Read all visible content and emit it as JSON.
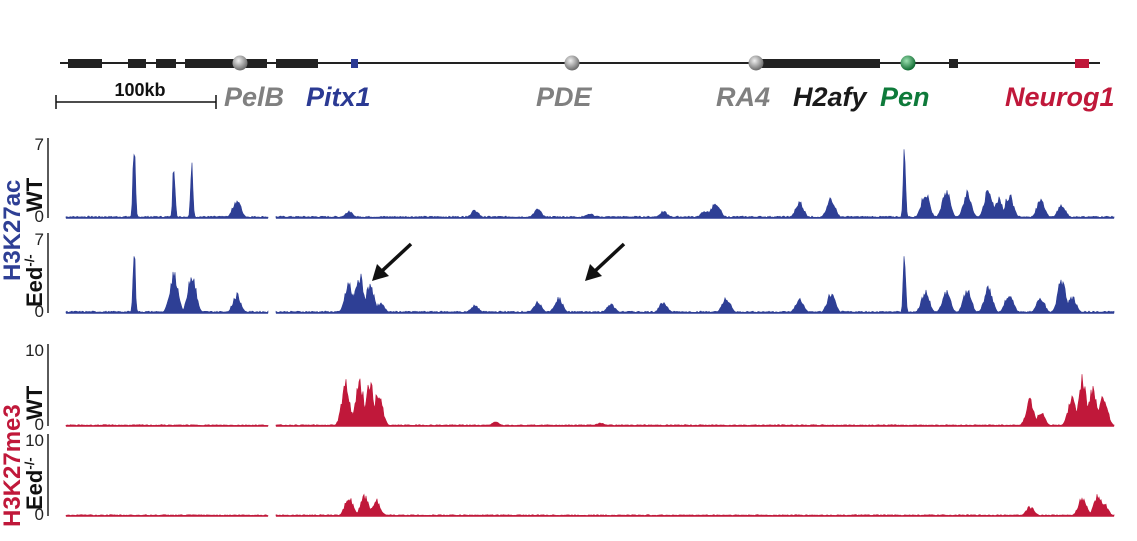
{
  "chart_data": {
    "type": "area",
    "locus": {
      "genes": [
        {
          "name": "PelB",
          "color": "#808080"
        },
        {
          "name": "Pitx1",
          "color": "#2b3a93"
        },
        {
          "name": "PDE",
          "color": "#808080"
        },
        {
          "name": "RA4",
          "color": "#808080"
        },
        {
          "name": "H2afy",
          "color": "#1a1a1a"
        },
        {
          "name": "Pen",
          "color": "#0e7a3a"
        },
        {
          "name": "Neurog1",
          "color": "#c0183a"
        }
      ],
      "scale_bar": "100kb"
    },
    "groups": [
      {
        "label": "H3K27ac",
        "color": "#2e3f95"
      },
      {
        "label": "H3K27me3",
        "color": "#c0183a"
      }
    ],
    "tracks": [
      {
        "condition": "WT",
        "group": 0,
        "y_ticks": [
          "0",
          "7"
        ],
        "ylim": [
          0,
          7
        ],
        "peaks": [
          [
            0.065,
            7.0
          ],
          [
            0.103,
            5.4
          ],
          [
            0.12,
            5.2
          ],
          [
            0.163,
            1.7
          ],
          [
            0.27,
            0.6
          ],
          [
            0.39,
            0.7
          ],
          [
            0.45,
            0.8
          ],
          [
            0.5,
            0.4
          ],
          [
            0.57,
            0.6
          ],
          [
            0.61,
            0.7
          ],
          [
            0.62,
            1.6
          ],
          [
            0.7,
            1.5
          ],
          [
            0.73,
            1.9
          ],
          [
            0.8,
            7.0
          ],
          [
            0.82,
            2.4
          ],
          [
            0.84,
            2.6
          ],
          [
            0.86,
            2.4
          ],
          [
            0.88,
            2.6
          ],
          [
            0.89,
            1.8
          ],
          [
            0.9,
            2.2
          ],
          [
            0.93,
            1.6
          ],
          [
            0.95,
            1.2
          ]
        ]
      },
      {
        "condition": "Eed",
        "condition_sup": "-/-",
        "group": 0,
        "y_ticks": [
          "0",
          "7"
        ],
        "ylim": [
          0,
          7
        ],
        "peaks": [
          [
            0.065,
            6.0
          ],
          [
            0.103,
            3.9
          ],
          [
            0.12,
            3.7
          ],
          [
            0.163,
            1.7
          ],
          [
            0.27,
            2.8
          ],
          [
            0.28,
            3.6
          ],
          [
            0.29,
            2.6
          ],
          [
            0.3,
            0.9
          ],
          [
            0.39,
            0.7
          ],
          [
            0.45,
            1.0
          ],
          [
            0.47,
            1.4
          ],
          [
            0.52,
            0.8
          ],
          [
            0.57,
            1.0
          ],
          [
            0.63,
            1.4
          ],
          [
            0.7,
            1.3
          ],
          [
            0.73,
            1.8
          ],
          [
            0.8,
            5.4
          ],
          [
            0.82,
            2.0
          ],
          [
            0.84,
            2.0
          ],
          [
            0.86,
            2.1
          ],
          [
            0.88,
            2.4
          ],
          [
            0.9,
            1.9
          ],
          [
            0.93,
            1.4
          ],
          [
            0.95,
            3.0
          ],
          [
            0.96,
            1.5
          ]
        ]
      },
      {
        "condition": "WT",
        "group": 1,
        "y_ticks": [
          "0",
          "10"
        ],
        "ylim": [
          0,
          10
        ],
        "peaks": [
          [
            0.267,
            5.5
          ],
          [
            0.28,
            6.0
          ],
          [
            0.29,
            5.5
          ],
          [
            0.298,
            4.3
          ],
          [
            0.41,
            0.5
          ],
          [
            0.51,
            0.4
          ],
          [
            0.92,
            3.3
          ],
          [
            0.93,
            1.8
          ],
          [
            0.96,
            3.5
          ],
          [
            0.97,
            6.1
          ],
          [
            0.98,
            5.0
          ],
          [
            0.99,
            3.8
          ]
        ]
      },
      {
        "condition": "Eed",
        "condition_sup": "-/-",
        "group": 1,
        "y_ticks": [
          "0",
          "10"
        ],
        "ylim": [
          0,
          10
        ],
        "peaks": [
          [
            0.27,
            2.5
          ],
          [
            0.285,
            2.6
          ],
          [
            0.296,
            2.1
          ],
          [
            0.92,
            1.2
          ],
          [
            0.97,
            2.4
          ],
          [
            0.985,
            2.8
          ],
          [
            0.99,
            1.8
          ]
        ]
      }
    ]
  }
}
